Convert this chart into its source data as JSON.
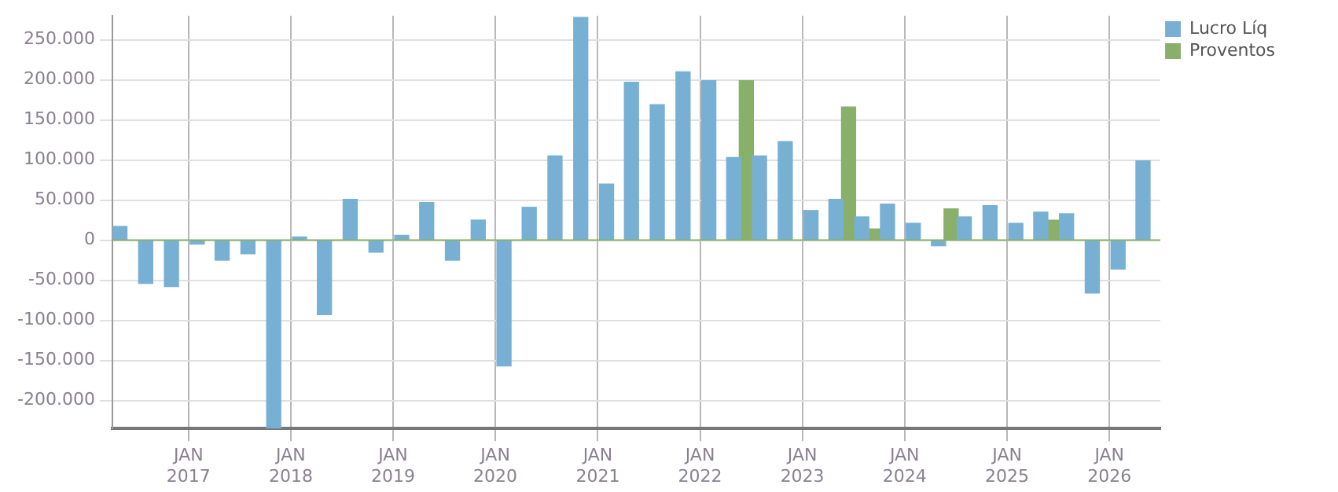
{
  "chart_data": {
    "type": "bar",
    "series": [
      {
        "name": "Lucro Líq",
        "color": "#78b0d4",
        "x": [
          "2016-05-01",
          "2016-08-01",
          "2016-11-01",
          "2017-02-01",
          "2017-05-01",
          "2017-08-01",
          "2017-11-01",
          "2018-02-01",
          "2018-05-01",
          "2018-08-01",
          "2018-11-01",
          "2019-02-01",
          "2019-05-01",
          "2019-08-01",
          "2019-11-01",
          "2020-02-01",
          "2020-05-01",
          "2020-08-01",
          "2020-11-01",
          "2021-02-01",
          "2021-05-01",
          "2021-08-01",
          "2021-11-01",
          "2022-02-01",
          "2022-05-01",
          "2022-08-01",
          "2022-11-01",
          "2023-02-01",
          "2023-05-01",
          "2023-08-01",
          "2023-11-01",
          "2024-02-01",
          "2024-05-01",
          "2024-08-01",
          "2024-11-01",
          "2025-02-01",
          "2025-05-01",
          "2025-08-01",
          "2025-11-01",
          "2026-02-01",
          "2026-05-01"
        ],
        "values": [
          17000,
          -54000,
          -58000,
          -5000,
          -25000,
          -17000,
          -235000,
          4000,
          -93000,
          51000,
          -15000,
          6000,
          47000,
          -25000,
          25000,
          -157000,
          41000,
          105000,
          278000,
          70000,
          197000,
          169000,
          210000,
          199000,
          103000,
          105000,
          123000,
          37000,
          51000,
          29000,
          45000,
          21000,
          -7000,
          29000,
          43000,
          21000,
          35000,
          33000,
          -66000,
          -36000,
          99000
        ]
      },
      {
        "name": "Proventos",
        "color": "#88b06a",
        "x": [
          "2022-06-15",
          "2023-06-15",
          "2023-09-12",
          "2024-06-15",
          "2025-06-15"
        ],
        "values": [
          199000,
          166000,
          14000,
          39000,
          25000
        ]
      }
    ],
    "xlim": [
      "2016-04-04",
      "2026-07-02"
    ],
    "xticks": [
      {
        "value": "2017-01-01",
        "label": "JAN 2017"
      },
      {
        "value": "2018-01-01",
        "label": "JAN 2018"
      },
      {
        "value": "2019-01-01",
        "label": "JAN 2019"
      },
      {
        "value": "2020-01-01",
        "label": "JAN 2020"
      },
      {
        "value": "2021-01-01",
        "label": "JAN 2021"
      },
      {
        "value": "2022-01-01",
        "label": "JAN 2022"
      },
      {
        "value": "2023-01-01",
        "label": "JAN 2023"
      },
      {
        "value": "2024-01-01",
        "label": "JAN 2024"
      },
      {
        "value": "2025-01-01",
        "label": "JAN 2025"
      },
      {
        "value": "2026-01-01",
        "label": "JAN 2026"
      }
    ],
    "ylim": [
      -235000,
      280000
    ],
    "yticks": [
      {
        "value": -200000,
        "label": "-200.000"
      },
      {
        "value": -150000,
        "label": "-150.000"
      },
      {
        "value": -100000,
        "label": "-100.000"
      },
      {
        "value": -50000,
        "label": "-50.000"
      },
      0,
      {
        "value": 50000,
        "label": "50.000"
      },
      {
        "value": 100000,
        "label": "100.000"
      },
      {
        "value": 150000,
        "label": "150.000"
      },
      {
        "value": 200000,
        "label": "200.000"
      },
      {
        "value": 250000,
        "label": "250.000"
      }
    ],
    "ref_lines": [
      {
        "axis": "y",
        "value": 0,
        "color": "#88b06a"
      }
    ],
    "grid": true,
    "legend": "top right"
  }
}
